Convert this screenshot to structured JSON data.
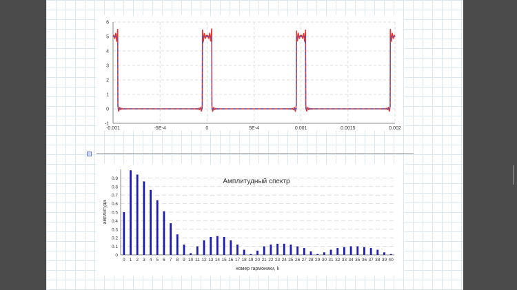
{
  "colors": {
    "dark_panel": "#4b4b4b",
    "worksheet_grid": "#dbe8ee",
    "signal_red": "#e03a3a",
    "signal_dashed_blue": "#5050b8",
    "bar_blue": "#1c1cb0"
  },
  "icons": {
    "region_marker": "region-handle-icon"
  },
  "chart_data": [
    {
      "type": "line",
      "title": "",
      "xlabel": "",
      "ylabel": "",
      "xlim": [
        -0.001,
        0.002
      ],
      "ylim": [
        -1,
        6
      ],
      "x_ticks": [
        -0.001,
        -0.0005,
        0,
        0.0005,
        0.001,
        0.0015,
        0.002
      ],
      "x_tick_labels": [
        "-0.001",
        "-5E-4",
        "0",
        "5E-4",
        "0.001",
        "0.0015",
        "0.002"
      ],
      "y_ticks": [
        -1,
        0,
        1,
        2,
        3,
        4,
        5,
        6
      ],
      "y_tick_labels": [
        "-1",
        "0",
        "1",
        "2",
        "3",
        "4",
        "5",
        "6"
      ],
      "grid": true,
      "pulse_period": 0.001,
      "pulse_half_width": 5e-05,
      "pulse_amplitude": 5,
      "series": [
        {
          "style": "solid",
          "color": "#e03a3a",
          "description_visible": false
        },
        {
          "style": "dashed",
          "color": "#5050b8",
          "description_visible": false
        }
      ]
    },
    {
      "type": "bar",
      "title": "Амплитудный спектр",
      "xlabel": "номер гармоники, k",
      "ylabel": "амплитуда",
      "ylim": [
        0,
        1
      ],
      "grid": true,
      "categories": [
        "0",
        "1",
        "2",
        "3",
        "4",
        "5",
        "6",
        "7",
        "8",
        "9",
        "10",
        "11",
        "12",
        "13",
        "14",
        "15",
        "16",
        "17",
        "18",
        "19",
        "20",
        "21",
        "22",
        "23",
        "24",
        "25",
        "26",
        "27",
        "28",
        "29",
        "30",
        "31",
        "32",
        "33",
        "34",
        "35",
        "36",
        "37",
        "38",
        "39",
        "40"
      ],
      "y_ticks": [
        0,
        0.1,
        0.2,
        0.3,
        0.4,
        0.5,
        0.6,
        0.7,
        0.8,
        0.9
      ],
      "y_tick_labels": [
        "0",
        "0.1",
        "0.2",
        "0.3",
        "0.4",
        "0.5",
        "0.6",
        "0.7",
        "0.8",
        "0.9"
      ],
      "values": [
        0.5,
        0.99,
        0.94,
        0.86,
        0.76,
        0.64,
        0.51,
        0.37,
        0.24,
        0.12,
        0.02,
        0.1,
        0.17,
        0.21,
        0.22,
        0.21,
        0.17,
        0.12,
        0.06,
        0.01,
        0.05,
        0.1,
        0.12,
        0.13,
        0.13,
        0.12,
        0.1,
        0.08,
        0.04,
        0.01,
        0.03,
        0.06,
        0.08,
        0.09,
        0.1,
        0.1,
        0.09,
        0.08,
        0.06,
        0.03,
        0.01
      ]
    }
  ]
}
